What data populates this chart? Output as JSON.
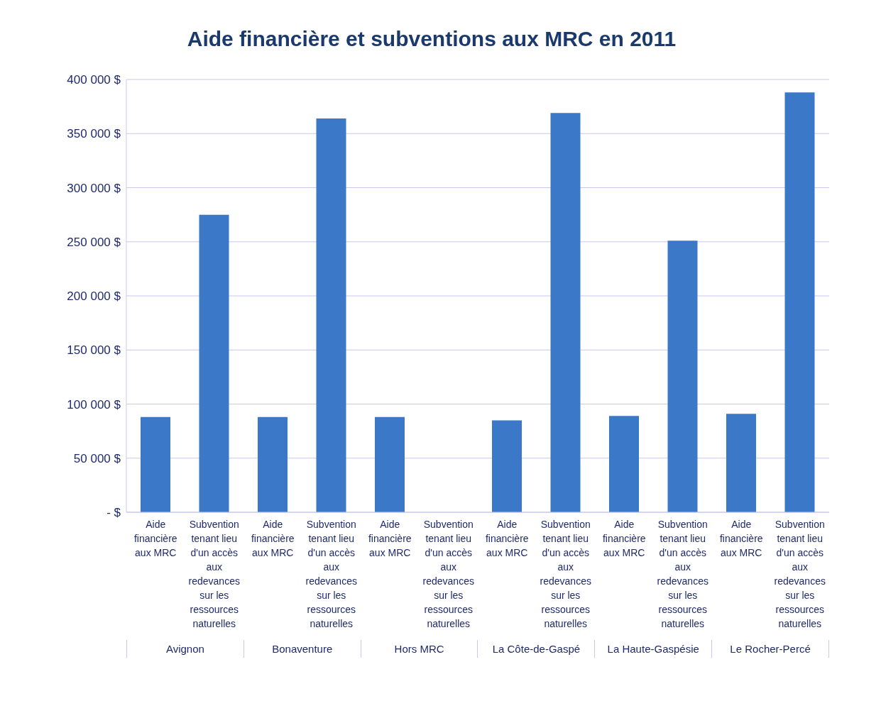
{
  "chart_data": {
    "type": "bar",
    "title": "Aide financière et subventions aux MRC en 2011",
    "categories": [
      "Aide financière aux MRC",
      "Subvention tenant lieu d'un accès aux redevances sur les ressources naturelles",
      "Aide financière aux MRC",
      "Subvention tenant lieu d'un accès aux redevances sur les ressources naturelles",
      "Aide financière aux MRC",
      "Subvention tenant lieu d'un accès aux redevances sur les ressources naturelles",
      "Aide financière aux MRC",
      "Subvention tenant lieu d'un accès aux redevances sur les ressources naturelles",
      "Aide financière aux MRC",
      "Subvention tenant lieu d'un accès aux redevances sur les ressources naturelles",
      "Aide financière aux MRC",
      "Subvention tenant lieu d'un accès aux redevances sur les ressources naturelles"
    ],
    "values": [
      88000,
      275000,
      88000,
      364000,
      88000,
      0,
      85000,
      369000,
      89000,
      251000,
      91000,
      388000
    ],
    "color": "#3b78c8",
    "ylim": [
      0,
      400000
    ],
    "yticks": [
      {
        "value": 0,
        "label": "-   $"
      },
      {
        "value": 50000,
        "label": "50 000  $"
      },
      {
        "value": 100000,
        "label": "100 000  $"
      },
      {
        "value": 150000,
        "label": "150 000  $"
      },
      {
        "value": 200000,
        "label": "200 000  $"
      },
      {
        "value": 250000,
        "label": "250 000  $"
      },
      {
        "value": 300000,
        "label": "300 000  $"
      },
      {
        "value": 350000,
        "label": "350 000  $"
      },
      {
        "value": 400000,
        "label": "400 000  $"
      }
    ],
    "grid": "y",
    "annotations": [
      "Avignon",
      "Bonaventure",
      "Hors MRC",
      "La Côte-de-Gaspé",
      "La Haute-Gaspésie",
      "Le Rocher-Percé"
    ]
  }
}
